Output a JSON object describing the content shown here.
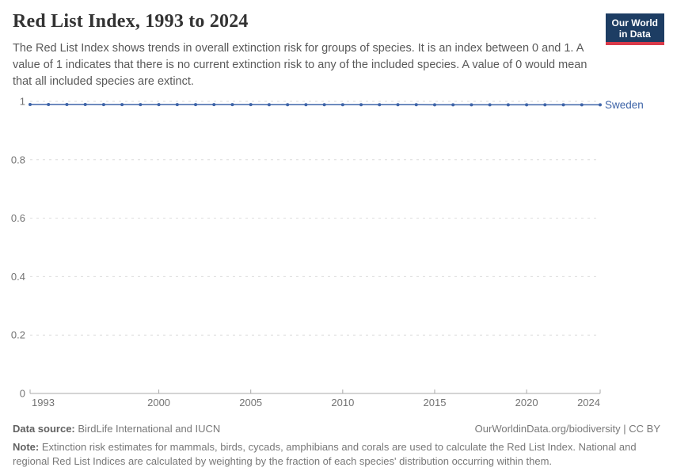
{
  "header": {
    "title": "Red List Index, 1993 to 2024"
  },
  "logo": {
    "line1": "Our World",
    "line2": "in Data"
  },
  "subtitle": "The Red List Index shows trends in overall extinction risk for groups of species. It is an index between 0 and 1. A value of 1 indicates that there is no current extinction risk to any of the included species. A value of 0 would mean that all included species are extinct.",
  "chart_data": {
    "type": "line",
    "title": "Red List Index, 1993 to 2024",
    "xlabel": "",
    "ylabel": "",
    "xlim": [
      1993,
      2024
    ],
    "ylim": [
      0,
      1
    ],
    "grid": "horizontal-dashed",
    "legend_position": "end-of-line-label",
    "x": [
      1993,
      1994,
      1995,
      1996,
      1997,
      1998,
      1999,
      2000,
      2001,
      2002,
      2003,
      2004,
      2005,
      2006,
      2007,
      2008,
      2009,
      2010,
      2011,
      2012,
      2013,
      2014,
      2015,
      2016,
      2017,
      2018,
      2019,
      2020,
      2021,
      2022,
      2023,
      2024
    ],
    "series": [
      {
        "name": "Sweden",
        "color": "#3E64A8",
        "values": [
          0.989,
          0.989,
          0.989,
          0.989,
          0.9889,
          0.9889,
          0.9889,
          0.9888,
          0.9888,
          0.9888,
          0.9887,
          0.9887,
          0.9887,
          0.9886,
          0.9886,
          0.9886,
          0.9885,
          0.9885,
          0.9885,
          0.9884,
          0.9884,
          0.9884,
          0.9883,
          0.9883,
          0.9883,
          0.9882,
          0.9882,
          0.9882,
          0.9881,
          0.9881,
          0.9881,
          0.988
        ]
      }
    ],
    "xticks": [
      {
        "value": 1993,
        "label": "1993"
      },
      {
        "value": 2000,
        "label": "2000"
      },
      {
        "value": 2005,
        "label": "2005"
      },
      {
        "value": 2010,
        "label": "2010"
      },
      {
        "value": 2015,
        "label": "2015"
      },
      {
        "value": 2020,
        "label": "2020"
      },
      {
        "value": 2024,
        "label": "2024"
      }
    ],
    "yticks": [
      {
        "value": 0,
        "label": "0"
      },
      {
        "value": 0.2,
        "label": "0.2"
      },
      {
        "value": 0.4,
        "label": "0.4"
      },
      {
        "value": 0.6,
        "label": "0.6"
      },
      {
        "value": 0.8,
        "label": "0.8"
      },
      {
        "value": 1,
        "label": "1"
      }
    ],
    "colors": {
      "line": "#3E64A8",
      "gridline": "#dcdcdc",
      "axis": "#a8a8a8",
      "tick_label": "#737373"
    }
  },
  "footer": {
    "datasource_label": "Data source:",
    "datasource_value": " BirdLife International and IUCN",
    "credit": "OurWorldinData.org/biodiversity | CC BY",
    "note_label": "Note:",
    "note_text": " Extinction risk estimates for mammals, birds, cycads, amphibians and corals are used to calculate the Red List Index. National and regional Red List Indices are calculated by weighting by the fraction of each species' distribution occurring within them."
  }
}
